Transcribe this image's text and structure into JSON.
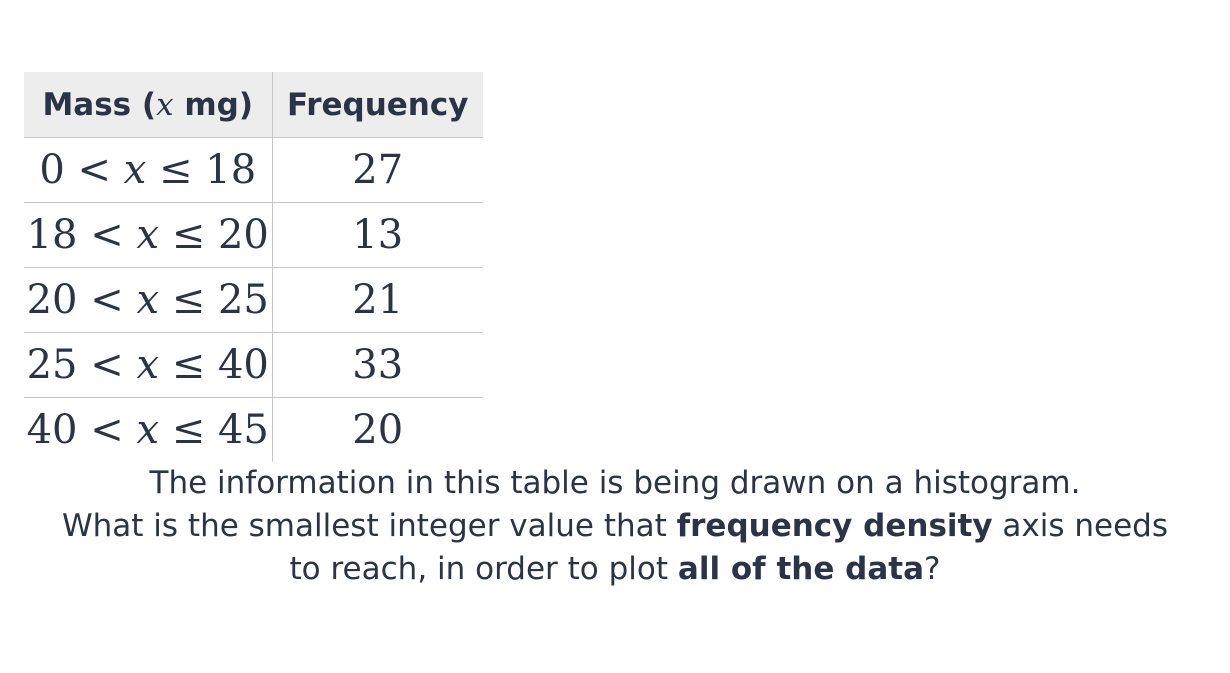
{
  "table": {
    "header": {
      "mass_prefix": "Mass (",
      "mass_var": "x",
      "mass_suffix": " mg)",
      "frequency": "Frequency"
    },
    "rows": [
      {
        "low": "0",
        "lt": " < ",
        "var": "x",
        "le": " ≤ ",
        "high": "18",
        "frequency": "27"
      },
      {
        "low": "18",
        "lt": " < ",
        "var": "x",
        "le": " ≤ ",
        "high": "20",
        "frequency": "13"
      },
      {
        "low": "20",
        "lt": " < ",
        "var": "x",
        "le": " ≤ ",
        "high": "25",
        "frequency": "21"
      },
      {
        "low": "25",
        "lt": " < ",
        "var": "x",
        "le": " ≤ ",
        "high": "40",
        "frequency": "33"
      },
      {
        "low": "40",
        "lt": " < ",
        "var": "x",
        "le": " ≤ ",
        "high": "45",
        "frequency": "20"
      }
    ]
  },
  "question": {
    "line1": "The information in this table is being drawn on a histogram.",
    "line2_a": "What is the smallest integer value that ",
    "line2_bold": "frequency density",
    "line2_b": " axis needs",
    "line3_a": "to reach, in order to plot ",
    "line3_bold": "all of the data",
    "line3_b": "?"
  }
}
